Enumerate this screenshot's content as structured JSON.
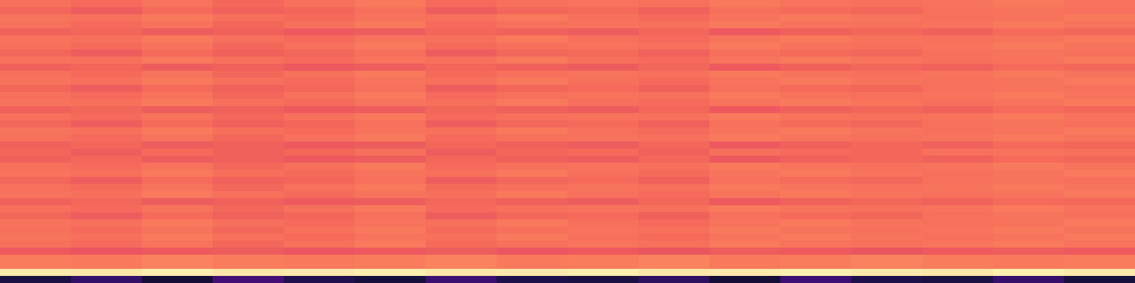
{
  "chart_data": {
    "type": "heatmap",
    "color": "magma",
    "tick_labels": false,
    "color_range": [
      0,
      1
    ],
    "cells": [
      [
        0.7,
        0.69,
        0.71,
        0.68,
        0.7,
        0.72,
        0.69,
        0.7,
        0.71,
        0.7,
        0.72,
        0.71,
        0.7,
        0.71,
        0.72,
        0.71
      ],
      [
        0.68,
        0.66,
        0.69,
        0.67,
        0.68,
        0.7,
        0.66,
        0.68,
        0.69,
        0.67,
        0.7,
        0.69,
        0.68,
        0.7,
        0.71,
        0.7
      ],
      [
        0.71,
        0.7,
        0.72,
        0.7,
        0.69,
        0.71,
        0.7,
        0.72,
        0.7,
        0.69,
        0.71,
        0.72,
        0.71,
        0.7,
        0.71,
        0.72
      ],
      [
        0.7,
        0.69,
        0.71,
        0.68,
        0.7,
        0.72,
        0.69,
        0.7,
        0.71,
        0.7,
        0.72,
        0.71,
        0.7,
        0.71,
        0.72,
        0.71
      ],
      [
        0.67,
        0.68,
        0.66,
        0.67,
        0.65,
        0.66,
        0.68,
        0.67,
        0.66,
        0.68,
        0.65,
        0.67,
        0.68,
        0.67,
        0.69,
        0.68
      ],
      [
        0.71,
        0.7,
        0.72,
        0.7,
        0.69,
        0.71,
        0.7,
        0.72,
        0.7,
        0.69,
        0.71,
        0.72,
        0.71,
        0.7,
        0.71,
        0.72
      ],
      [
        0.7,
        0.69,
        0.71,
        0.68,
        0.7,
        0.72,
        0.69,
        0.7,
        0.71,
        0.7,
        0.72,
        0.71,
        0.7,
        0.71,
        0.72,
        0.71
      ],
      [
        0.68,
        0.66,
        0.69,
        0.67,
        0.68,
        0.7,
        0.66,
        0.68,
        0.69,
        0.67,
        0.7,
        0.69,
        0.68,
        0.7,
        0.71,
        0.7
      ],
      [
        0.71,
        0.7,
        0.72,
        0.7,
        0.69,
        0.71,
        0.7,
        0.72,
        0.7,
        0.69,
        0.71,
        0.72,
        0.71,
        0.7,
        0.71,
        0.72
      ],
      [
        0.67,
        0.68,
        0.66,
        0.67,
        0.65,
        0.66,
        0.68,
        0.67,
        0.66,
        0.68,
        0.65,
        0.67,
        0.68,
        0.67,
        0.69,
        0.68
      ],
      [
        0.7,
        0.69,
        0.71,
        0.68,
        0.7,
        0.72,
        0.69,
        0.7,
        0.71,
        0.7,
        0.72,
        0.71,
        0.7,
        0.71,
        0.72,
        0.71
      ],
      [
        0.71,
        0.7,
        0.72,
        0.7,
        0.69,
        0.71,
        0.7,
        0.72,
        0.7,
        0.69,
        0.71,
        0.72,
        0.71,
        0.7,
        0.71,
        0.72
      ],
      [
        0.68,
        0.66,
        0.69,
        0.67,
        0.68,
        0.7,
        0.66,
        0.68,
        0.69,
        0.67,
        0.7,
        0.69,
        0.68,
        0.7,
        0.71,
        0.7
      ],
      [
        0.7,
        0.69,
        0.71,
        0.68,
        0.7,
        0.72,
        0.69,
        0.7,
        0.71,
        0.7,
        0.72,
        0.71,
        0.7,
        0.71,
        0.72,
        0.71
      ],
      [
        0.71,
        0.7,
        0.72,
        0.7,
        0.69,
        0.71,
        0.7,
        0.72,
        0.7,
        0.69,
        0.71,
        0.72,
        0.71,
        0.7,
        0.71,
        0.72
      ],
      [
        0.67,
        0.68,
        0.66,
        0.67,
        0.65,
        0.66,
        0.68,
        0.67,
        0.66,
        0.68,
        0.65,
        0.67,
        0.68,
        0.67,
        0.69,
        0.68
      ],
      [
        0.7,
        0.69,
        0.71,
        0.68,
        0.7,
        0.72,
        0.69,
        0.7,
        0.71,
        0.7,
        0.72,
        0.71,
        0.7,
        0.71,
        0.72,
        0.71
      ],
      [
        0.68,
        0.66,
        0.69,
        0.67,
        0.68,
        0.7,
        0.66,
        0.68,
        0.69,
        0.67,
        0.7,
        0.69,
        0.68,
        0.7,
        0.71,
        0.7
      ],
      [
        0.71,
        0.7,
        0.72,
        0.7,
        0.69,
        0.71,
        0.7,
        0.72,
        0.7,
        0.69,
        0.71,
        0.72,
        0.71,
        0.7,
        0.71,
        0.72
      ],
      [
        0.7,
        0.69,
        0.71,
        0.68,
        0.7,
        0.72,
        0.69,
        0.7,
        0.71,
        0.7,
        0.72,
        0.71,
        0.7,
        0.71,
        0.72,
        0.71
      ],
      [
        0.67,
        0.68,
        0.66,
        0.67,
        0.65,
        0.66,
        0.68,
        0.67,
        0.66,
        0.68,
        0.65,
        0.67,
        0.68,
        0.67,
        0.69,
        0.68
      ],
      [
        0.68,
        0.66,
        0.69,
        0.67,
        0.68,
        0.7,
        0.66,
        0.68,
        0.69,
        0.67,
        0.7,
        0.69,
        0.68,
        0.7,
        0.71,
        0.7
      ],
      [
        0.67,
        0.68,
        0.66,
        0.67,
        0.65,
        0.66,
        0.68,
        0.67,
        0.66,
        0.68,
        0.65,
        0.67,
        0.68,
        0.67,
        0.69,
        0.68
      ],
      [
        0.7,
        0.69,
        0.71,
        0.68,
        0.7,
        0.72,
        0.69,
        0.7,
        0.71,
        0.7,
        0.72,
        0.71,
        0.7,
        0.71,
        0.72,
        0.71
      ],
      [
        0.71,
        0.7,
        0.72,
        0.7,
        0.69,
        0.71,
        0.7,
        0.72,
        0.7,
        0.69,
        0.71,
        0.72,
        0.71,
        0.7,
        0.71,
        0.72
      ],
      [
        0.68,
        0.66,
        0.69,
        0.67,
        0.68,
        0.7,
        0.66,
        0.68,
        0.69,
        0.67,
        0.7,
        0.69,
        0.68,
        0.7,
        0.71,
        0.7
      ],
      [
        0.7,
        0.69,
        0.71,
        0.68,
        0.7,
        0.72,
        0.69,
        0.7,
        0.71,
        0.7,
        0.72,
        0.71,
        0.7,
        0.71,
        0.72,
        0.71
      ],
      [
        0.71,
        0.7,
        0.72,
        0.7,
        0.69,
        0.71,
        0.7,
        0.72,
        0.7,
        0.69,
        0.71,
        0.72,
        0.71,
        0.7,
        0.71,
        0.72
      ],
      [
        0.67,
        0.68,
        0.66,
        0.67,
        0.65,
        0.66,
        0.68,
        0.67,
        0.66,
        0.68,
        0.65,
        0.67,
        0.68,
        0.67,
        0.69,
        0.68
      ],
      [
        0.7,
        0.69,
        0.71,
        0.68,
        0.7,
        0.72,
        0.69,
        0.7,
        0.71,
        0.7,
        0.72,
        0.71,
        0.7,
        0.71,
        0.72,
        0.71
      ],
      [
        0.68,
        0.66,
        0.69,
        0.67,
        0.68,
        0.7,
        0.66,
        0.68,
        0.69,
        0.67,
        0.7,
        0.69,
        0.68,
        0.7,
        0.71,
        0.7
      ],
      [
        0.71,
        0.7,
        0.72,
        0.7,
        0.69,
        0.71,
        0.7,
        0.72,
        0.7,
        0.69,
        0.71,
        0.72,
        0.71,
        0.7,
        0.71,
        0.72
      ],
      [
        0.7,
        0.69,
        0.71,
        0.68,
        0.7,
        0.72,
        0.69,
        0.7,
        0.71,
        0.7,
        0.72,
        0.71,
        0.7,
        0.71,
        0.72,
        0.71
      ],
      [
        0.71,
        0.7,
        0.72,
        0.7,
        0.69,
        0.71,
        0.7,
        0.72,
        0.7,
        0.69,
        0.71,
        0.72,
        0.71,
        0.7,
        0.71,
        0.72
      ],
      [
        0.7,
        0.69,
        0.71,
        0.68,
        0.7,
        0.72,
        0.69,
        0.7,
        0.71,
        0.7,
        0.72,
        0.71,
        0.7,
        0.71,
        0.72,
        0.71
      ],
      [
        0.65,
        0.64,
        0.65,
        0.66,
        0.64,
        0.65,
        0.66,
        0.64,
        0.65,
        0.64,
        0.66,
        0.65,
        0.64,
        0.65,
        0.66,
        0.65
      ],
      [
        0.73,
        0.72,
        0.74,
        0.73,
        0.72,
        0.73,
        0.74,
        0.72,
        0.73,
        0.74,
        0.72,
        0.73,
        0.74,
        0.73,
        0.72,
        0.73
      ],
      [
        0.73,
        0.72,
        0.74,
        0.73,
        0.72,
        0.73,
        0.74,
        0.72,
        0.73,
        0.74,
        0.72,
        0.73,
        0.74,
        0.73,
        0.72,
        0.73
      ],
      [
        0.96,
        0.95,
        0.97,
        0.95,
        0.96,
        0.97,
        0.95,
        0.96,
        0.97,
        0.95,
        0.96,
        0.97,
        0.96,
        0.95,
        0.97,
        0.96
      ],
      [
        0.12,
        0.18,
        0.1,
        0.22,
        0.14,
        0.11,
        0.2,
        0.13,
        0.12,
        0.17,
        0.1,
        0.21,
        0.13,
        0.12,
        0.19,
        0.11
      ]
    ]
  }
}
